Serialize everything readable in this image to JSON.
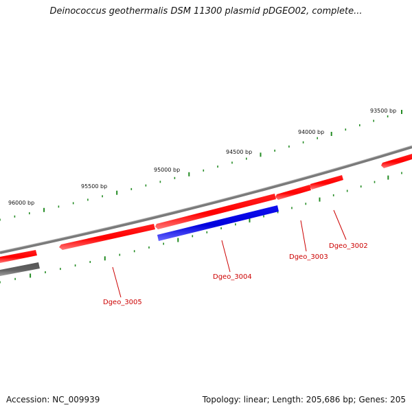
{
  "title": "Deinococcus geothermalis DSM 11300 plasmid pDGEO02, complete...",
  "footer": {
    "accession": "Accession: NC_009939",
    "summary": "Topology: linear; Length: 205,686 bp; Genes: 205"
  },
  "scale_labels": [
    "93500 bp",
    "94000 bp",
    "94500 bp",
    "95000 bp",
    "95500 bp",
    "96000 bp"
  ],
  "genes": [
    {
      "label": "Dgeo_3002",
      "strand": "forward",
      "color": "#ff0000"
    },
    {
      "label": "Dgeo_3003",
      "strand": "forward",
      "color": "#ff0000"
    },
    {
      "label": "Dgeo_3004",
      "strand": "reverse",
      "color": "#0000ee"
    },
    {
      "label": "Dgeo_3005",
      "strand": "forward",
      "color": "#ff0000"
    }
  ],
  "colors": {
    "backbone": "#808080",
    "forward_gene": "#ff0000",
    "reverse_gene": "#0000ee",
    "other_feature": "#555555",
    "tick": "#228b22",
    "label_text": "#cc0000"
  }
}
